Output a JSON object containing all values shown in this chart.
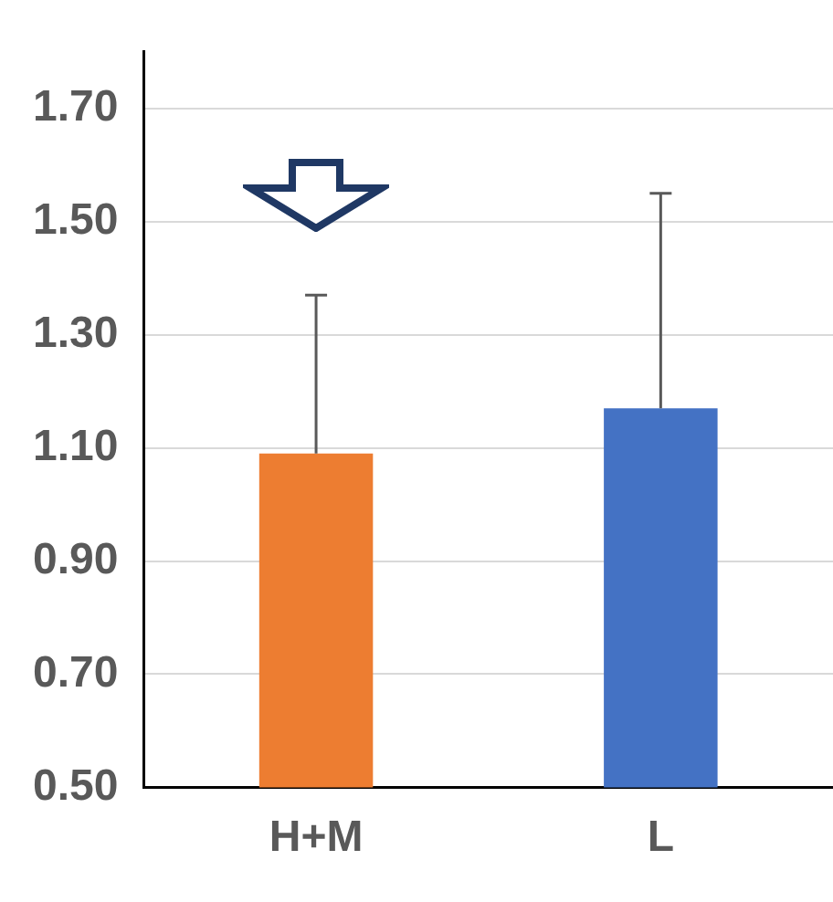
{
  "chart_data": {
    "type": "bar",
    "categories": [
      "H+M",
      "L"
    ],
    "values": [
      1.09,
      1.17
    ],
    "colors": [
      "#ed7d31",
      "#4472c4"
    ],
    "errors": [
      [
        1.09,
        1.37
      ],
      [
        1.17,
        1.55
      ]
    ],
    "ylim": [
      0.5,
      1.8
    ],
    "yticks": [
      {
        "value": 0.5,
        "label": "0.50"
      },
      {
        "value": 0.7,
        "label": "0.70"
      },
      {
        "value": 0.9,
        "label": "0.90"
      },
      {
        "value": 1.1,
        "label": "1.10"
      },
      {
        "value": 1.3,
        "label": "1.30"
      },
      {
        "value": 1.5,
        "label": "1.50"
      },
      {
        "value": 1.7,
        "label": "1.70"
      }
    ],
    "grid": "y",
    "legend": false
  }
}
